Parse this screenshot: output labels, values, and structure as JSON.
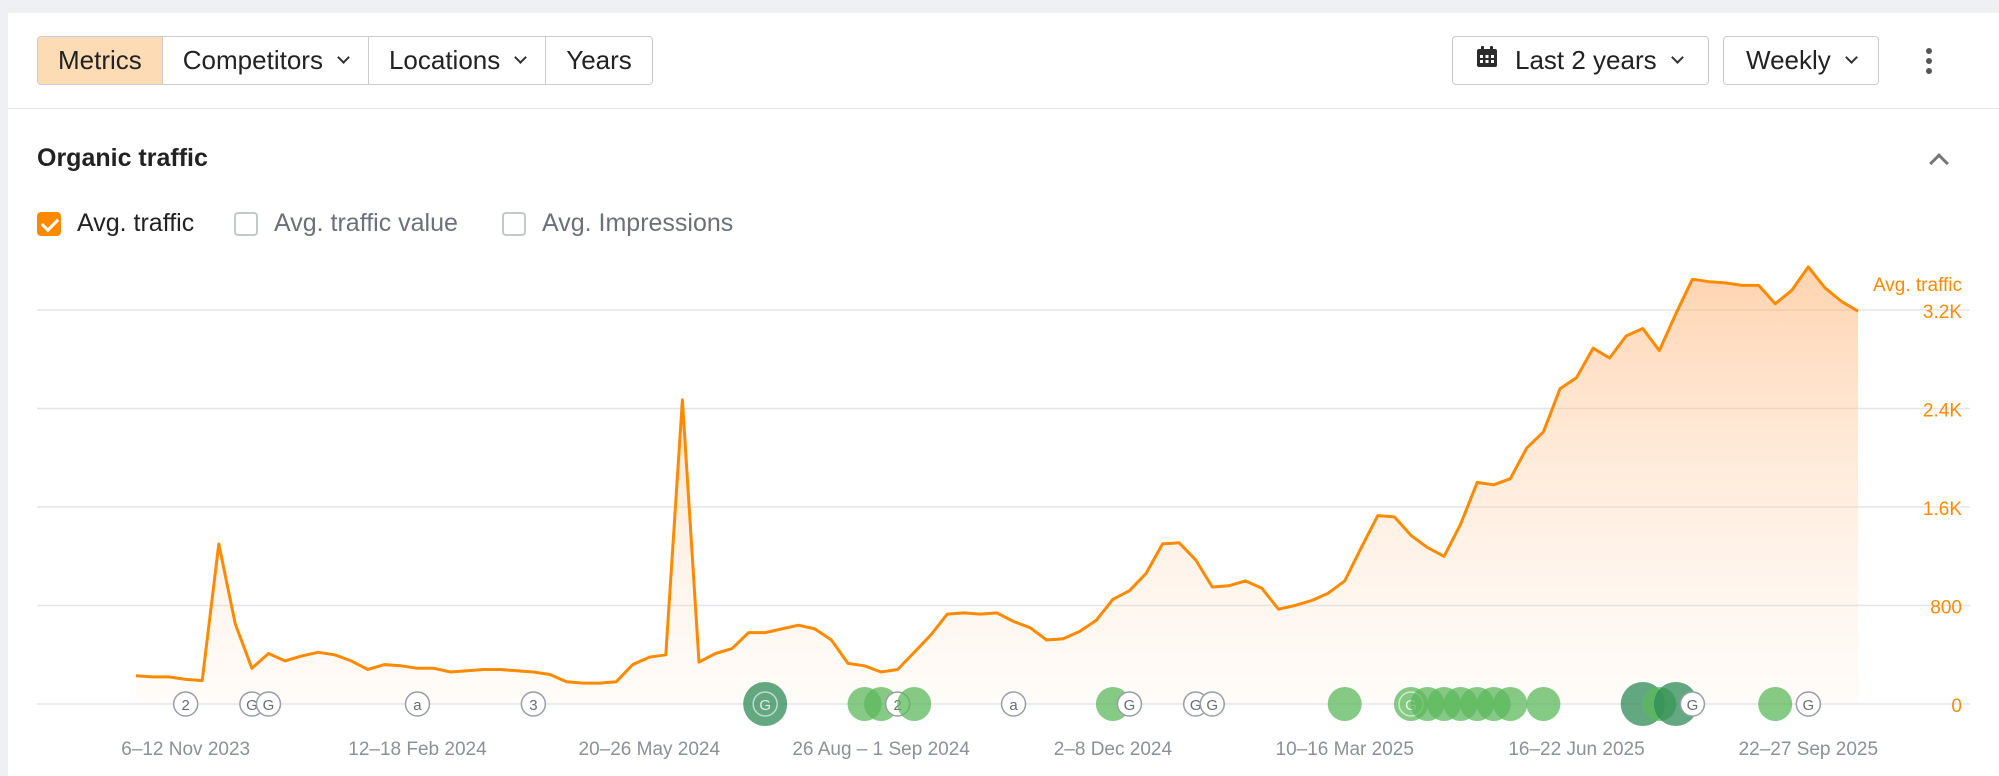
{
  "toolbar": {
    "tabs": [
      {
        "label": "Metrics",
        "active": true
      },
      {
        "label": "Competitors",
        "dropdown": true
      },
      {
        "label": "Locations",
        "dropdown": true
      },
      {
        "label": "Years",
        "dropdown": false
      }
    ],
    "date_range": "Last 2 years",
    "interval": "Weekly"
  },
  "section": {
    "title": "Organic traffic",
    "metrics": [
      {
        "label": "Avg. traffic",
        "checked": true
      },
      {
        "label": "Avg. traffic value",
        "checked": false
      },
      {
        "label": "Avg. Impressions",
        "checked": false
      }
    ]
  },
  "colors": {
    "accent": "#ff8a00",
    "active_tab": "#fddcb5",
    "marker_green": "#5cb85c",
    "marker_green_dark": "#2e8b57"
  },
  "chart_data": {
    "type": "area",
    "ylabel": "Avg. traffic",
    "ylim": [
      0,
      3200
    ],
    "yticks": [
      0,
      800,
      1600,
      2400,
      3200
    ],
    "ytick_labels": [
      "0",
      "800",
      "1.6K",
      "2.4K",
      "3.2K"
    ],
    "grid": true,
    "x_tick_labels": [
      "6–12 Nov 2023",
      "12–18 Feb 2024",
      "20–26 May 2024",
      "26 Aug – 1 Sep 2024",
      "2–8 Dec 2024",
      "10–16 Mar 2025",
      "16–22 Jun 2025",
      "22–27 Sep 2025"
    ],
    "x_tick_index": [
      3,
      17,
      31,
      45,
      59,
      73,
      87,
      101
    ],
    "series": [
      {
        "name": "Avg. traffic",
        "values": [
          230,
          220,
          220,
          200,
          190,
          1300,
          650,
          290,
          410,
          350,
          390,
          420,
          400,
          350,
          280,
          320,
          310,
          290,
          290,
          260,
          270,
          280,
          280,
          270,
          260,
          240,
          180,
          170,
          170,
          180,
          320,
          380,
          400,
          2470,
          340,
          410,
          450,
          580,
          580,
          610,
          640,
          610,
          520,
          330,
          310,
          260,
          280,
          420,
          560,
          730,
          740,
          730,
          740,
          670,
          620,
          520,
          530,
          590,
          680,
          850,
          920,
          1060,
          1300,
          1310,
          1170,
          950,
          960,
          1000,
          940,
          770,
          800,
          840,
          900,
          1000,
          1270,
          1530,
          1520,
          1370,
          1270,
          1200,
          1460,
          1800,
          1780,
          1830,
          2080,
          2210,
          2560,
          2650,
          2890,
          2810,
          2990,
          3050,
          2870,
          3170,
          3450,
          3430,
          3420,
          3400,
          3400,
          3250,
          3360,
          3550,
          3380,
          3270,
          3190
        ]
      }
    ],
    "annotations": [
      {
        "index": 3,
        "label": "2",
        "kind": "badge"
      },
      {
        "index": 7,
        "label": "G",
        "kind": "badge"
      },
      {
        "index": 8,
        "label": "G",
        "kind": "badge"
      },
      {
        "index": 17,
        "label": "a",
        "kind": "badge"
      },
      {
        "index": 24,
        "label": "3",
        "kind": "badge"
      },
      {
        "index": 38,
        "label": "G",
        "kind": "update",
        "size": "large"
      },
      {
        "index": 44,
        "label": "",
        "kind": "update"
      },
      {
        "index": 45,
        "label": "",
        "kind": "update"
      },
      {
        "index": 46,
        "label": "2",
        "kind": "badge"
      },
      {
        "index": 47,
        "label": "",
        "kind": "update"
      },
      {
        "index": 53,
        "label": "a",
        "kind": "badge"
      },
      {
        "index": 59,
        "label": "",
        "kind": "update"
      },
      {
        "index": 60,
        "label": "G",
        "kind": "badge"
      },
      {
        "index": 64,
        "label": "G",
        "kind": "badge"
      },
      {
        "index": 65,
        "label": "G",
        "kind": "badge"
      },
      {
        "index": 73,
        "label": "",
        "kind": "update"
      },
      {
        "index": 77,
        "label": "G",
        "kind": "update"
      },
      {
        "index": 78,
        "label": "",
        "kind": "update"
      },
      {
        "index": 79,
        "label": "",
        "kind": "update"
      },
      {
        "index": 80,
        "label": "",
        "kind": "update"
      },
      {
        "index": 81,
        "label": "",
        "kind": "update"
      },
      {
        "index": 82,
        "label": "",
        "kind": "update"
      },
      {
        "index": 83,
        "label": "",
        "kind": "update"
      },
      {
        "index": 85,
        "label": "",
        "kind": "update"
      },
      {
        "index": 91,
        "label": "",
        "kind": "update",
        "size": "large"
      },
      {
        "index": 92,
        "label": "",
        "kind": "update"
      },
      {
        "index": 93,
        "label": "",
        "kind": "update",
        "size": "large"
      },
      {
        "index": 94,
        "label": "G",
        "kind": "badge"
      },
      {
        "index": 99,
        "label": "",
        "kind": "update"
      },
      {
        "index": 101,
        "label": "G",
        "kind": "badge"
      }
    ]
  }
}
